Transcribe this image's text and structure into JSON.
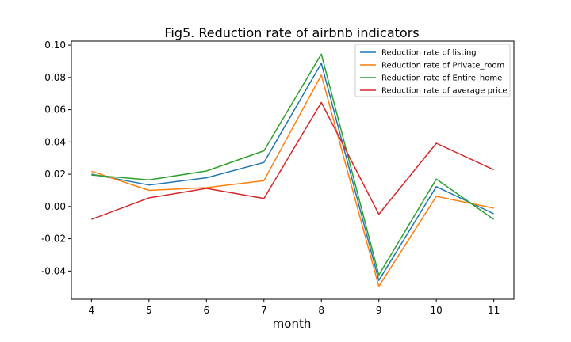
{
  "chart_data": {
    "type": "line",
    "title": "Fig5. Reduction rate of airbnb indicators",
    "xlabel": "month",
    "ylabel": "",
    "x": [
      4,
      5,
      6,
      7,
      8,
      9,
      10,
      11
    ],
    "xticks": [
      "4",
      "5",
      "6",
      "7",
      "8",
      "9",
      "10",
      "11"
    ],
    "yticks": [
      "0.10",
      "0.08",
      "0.06",
      "0.04",
      "0.02",
      "0.00",
      "-0.02",
      "-0.04"
    ],
    "ytick_values": [
      0.1,
      0.08,
      0.06,
      0.04,
      0.02,
      0.0,
      -0.02,
      -0.04
    ],
    "xlim": [
      3.65,
      11.35
    ],
    "ylim": [
      -0.0575,
      0.1025
    ],
    "grid": false,
    "legend_position": "upper right",
    "series": [
      {
        "name": "Reduction rate of listing",
        "color": "#1f77b4",
        "values": [
          0.02,
          0.0133,
          0.0178,
          0.0273,
          0.0888,
          -0.0458,
          0.0123,
          -0.0045
        ]
      },
      {
        "name": "Reduction rate of Private_room",
        "color": "#ff7f0e",
        "values": [
          0.0218,
          0.01,
          0.0117,
          0.016,
          0.0815,
          -0.0495,
          0.0063,
          -0.001
        ]
      },
      {
        "name": "Reduction rate of Entire_home",
        "color": "#2ca02c",
        "values": [
          0.0195,
          0.0165,
          0.022,
          0.0345,
          0.0945,
          -0.0425,
          0.017,
          -0.008
        ]
      },
      {
        "name": "Reduction rate of average price",
        "color": "#d62728",
        "values": [
          -0.008,
          0.0053,
          0.0112,
          0.005,
          0.0645,
          -0.0048,
          0.0392,
          0.0228
        ]
      }
    ]
  }
}
